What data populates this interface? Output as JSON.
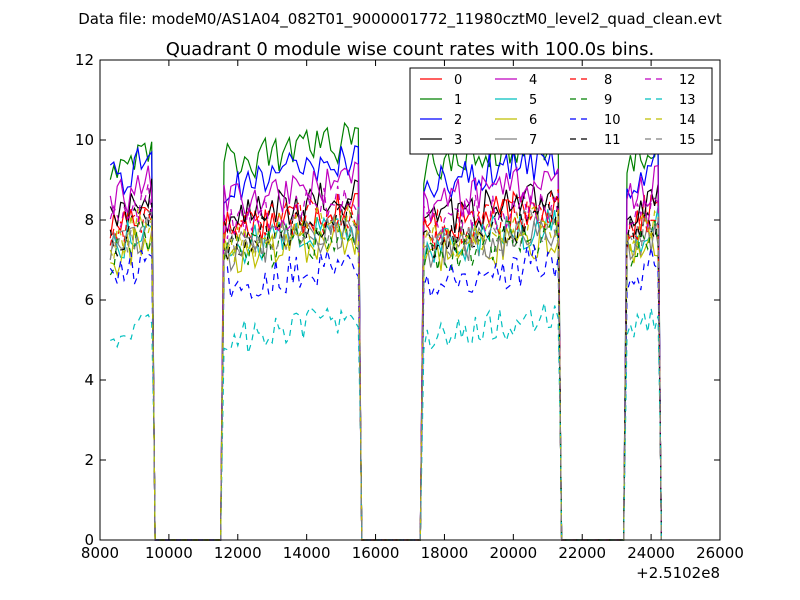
{
  "suptitle": "Data file: modeM0/AS1A04_082T01_9000001772_11980cztM0_level2_quad_clean.evt",
  "chart_data": {
    "type": "line",
    "title": "Quadrant 0 module wise count rates with 100.0s bins.",
    "xlabel": "",
    "ylabel": "",
    "xlim": [
      8000,
      26000
    ],
    "ylim": [
      0,
      12
    ],
    "x_offset_label": "+2.5102e8",
    "x_ticks": [
      8000,
      10000,
      12000,
      14000,
      16000,
      18000,
      20000,
      22000,
      24000,
      26000
    ],
    "x_tick_labels": [
      "8000",
      "10000",
      "12000",
      "14000",
      "16000",
      "18000",
      "20000",
      "22000",
      "24000",
      "26000"
    ],
    "y_ticks": [
      0,
      2,
      4,
      6,
      8,
      10,
      12
    ],
    "y_tick_labels": [
      "0",
      "2",
      "4",
      "6",
      "8",
      "10",
      "12"
    ],
    "grid": false,
    "legend_position": "top-right",
    "orbit_segments": [
      {
        "start": 8300,
        "end": 9500
      },
      {
        "start": 11600,
        "end": 15500
      },
      {
        "start": 17400,
        "end": 21300
      },
      {
        "start": 23300,
        "end": 24200
      }
    ],
    "series": [
      {
        "name": "0",
        "level": 7.8,
        "color": "#ff0000",
        "dash": "solid"
      },
      {
        "name": "1",
        "level": 9.4,
        "color": "#008000",
        "dash": "solid"
      },
      {
        "name": "2",
        "level": 8.9,
        "color": "#0000ff",
        "dash": "solid"
      },
      {
        "name": "3",
        "level": 8.0,
        "color": "#000000",
        "dash": "solid"
      },
      {
        "name": "4",
        "level": 8.4,
        "color": "#bf00bf",
        "dash": "solid"
      },
      {
        "name": "5",
        "level": 7.3,
        "color": "#00bfbf",
        "dash": "solid"
      },
      {
        "name": "6",
        "level": 7.0,
        "color": "#bfbf00",
        "dash": "solid"
      },
      {
        "name": "7",
        "level": 7.2,
        "color": "#808080",
        "dash": "solid"
      },
      {
        "name": "8",
        "level": 7.7,
        "color": "#ff0000",
        "dash": "dashed"
      },
      {
        "name": "9",
        "level": 7.1,
        "color": "#008000",
        "dash": "dashed"
      },
      {
        "name": "10",
        "level": 6.4,
        "color": "#0000ff",
        "dash": "dashed"
      },
      {
        "name": "11",
        "level": 7.5,
        "color": "#000000",
        "dash": "dashed"
      },
      {
        "name": "12",
        "level": 7.9,
        "color": "#bf00bf",
        "dash": "dashed"
      },
      {
        "name": "13",
        "level": 5.0,
        "color": "#00bfbf",
        "dash": "dashed"
      },
      {
        "name": "14",
        "level": 7.4,
        "color": "#bfbf00",
        "dash": "dashed"
      },
      {
        "name": "15",
        "level": 7.3,
        "color": "#808080",
        "dash": "dashed"
      }
    ]
  }
}
